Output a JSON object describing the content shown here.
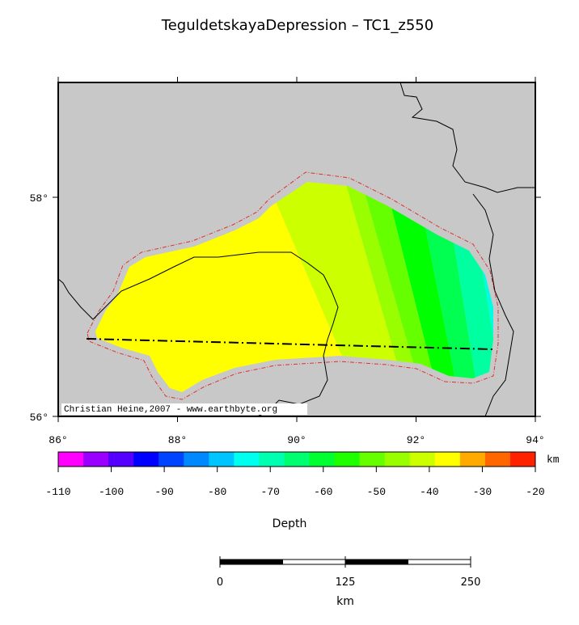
{
  "title": "TeguldetskayaDepression – TC1_z550",
  "map": {
    "xticks": [
      {
        "value": 86,
        "label": "86°"
      },
      {
        "value": 88,
        "label": "88°"
      },
      {
        "value": 90,
        "label": "90°"
      },
      {
        "value": 92,
        "label": "92°"
      },
      {
        "value": 94,
        "label": "94°"
      }
    ],
    "yticks": [
      {
        "value": 56,
        "label": "56°"
      },
      {
        "value": 58,
        "label": "58°"
      }
    ],
    "credit": "Christian Heine,2007 - www.earthbyte.org"
  },
  "colorbar": {
    "label": "Depth",
    "unit": "km",
    "lim": [
      -110,
      -20
    ],
    "ticks": [
      -110,
      -100,
      -90,
      -80,
      -70,
      -60,
      -50,
      -40,
      -30,
      -20
    ],
    "colors": [
      "#ff00ff",
      "#9900ff",
      "#5500ff",
      "#0000ff",
      "#0044ff",
      "#0088ff",
      "#00c4ff",
      "#00ffee",
      "#00ffb0",
      "#00ff70",
      "#00ff30",
      "#20ff00",
      "#66ff00",
      "#99ff00",
      "#ccff00",
      "#ffff00",
      "#ffaa00",
      "#ff6600",
      "#ff2200"
    ]
  },
  "scalebar": {
    "unit": "km",
    "lim": [
      0,
      250
    ],
    "ticks": [
      0,
      125,
      250
    ]
  }
}
